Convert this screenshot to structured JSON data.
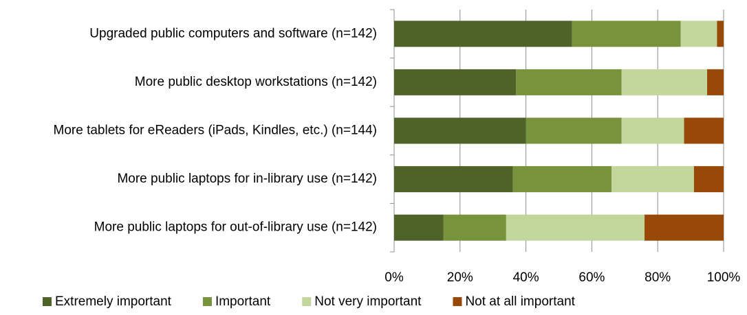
{
  "chart_data": {
    "type": "stacked_bar_horizontal",
    "categories": [
      "Upgraded public computers and software (n=142)",
      "More public desktop workstations (n=142)",
      "More tablets for eReaders (iPads, Kindles, etc.) (n=144)",
      "More public laptops for in-library use (n=142)",
      "More public laptops for out-of-library use (n=142)"
    ],
    "series": [
      {
        "name": "Extremely important",
        "color": "#4f6228",
        "values": [
          54,
          37,
          40,
          36,
          15
        ]
      },
      {
        "name": "Important",
        "color": "#77933c",
        "values": [
          33,
          32,
          29,
          30,
          19
        ]
      },
      {
        "name": "Not very important",
        "color": "#c3d69b",
        "values": [
          11,
          26,
          19,
          25,
          42
        ]
      },
      {
        "name": "Not at all important",
        "color": "#984807",
        "values": [
          2,
          5,
          12,
          9,
          24
        ]
      }
    ],
    "xlim": [
      0,
      100
    ],
    "xticks": [
      {
        "value": 0,
        "label": "0%"
      },
      {
        "value": 20,
        "label": "20%"
      },
      {
        "value": 40,
        "label": "40%"
      },
      {
        "value": 60,
        "label": "60%"
      },
      {
        "value": 80,
        "label": "80%"
      },
      {
        "value": 100,
        "label": "100%"
      }
    ],
    "grid": true,
    "legend": "bottom"
  }
}
